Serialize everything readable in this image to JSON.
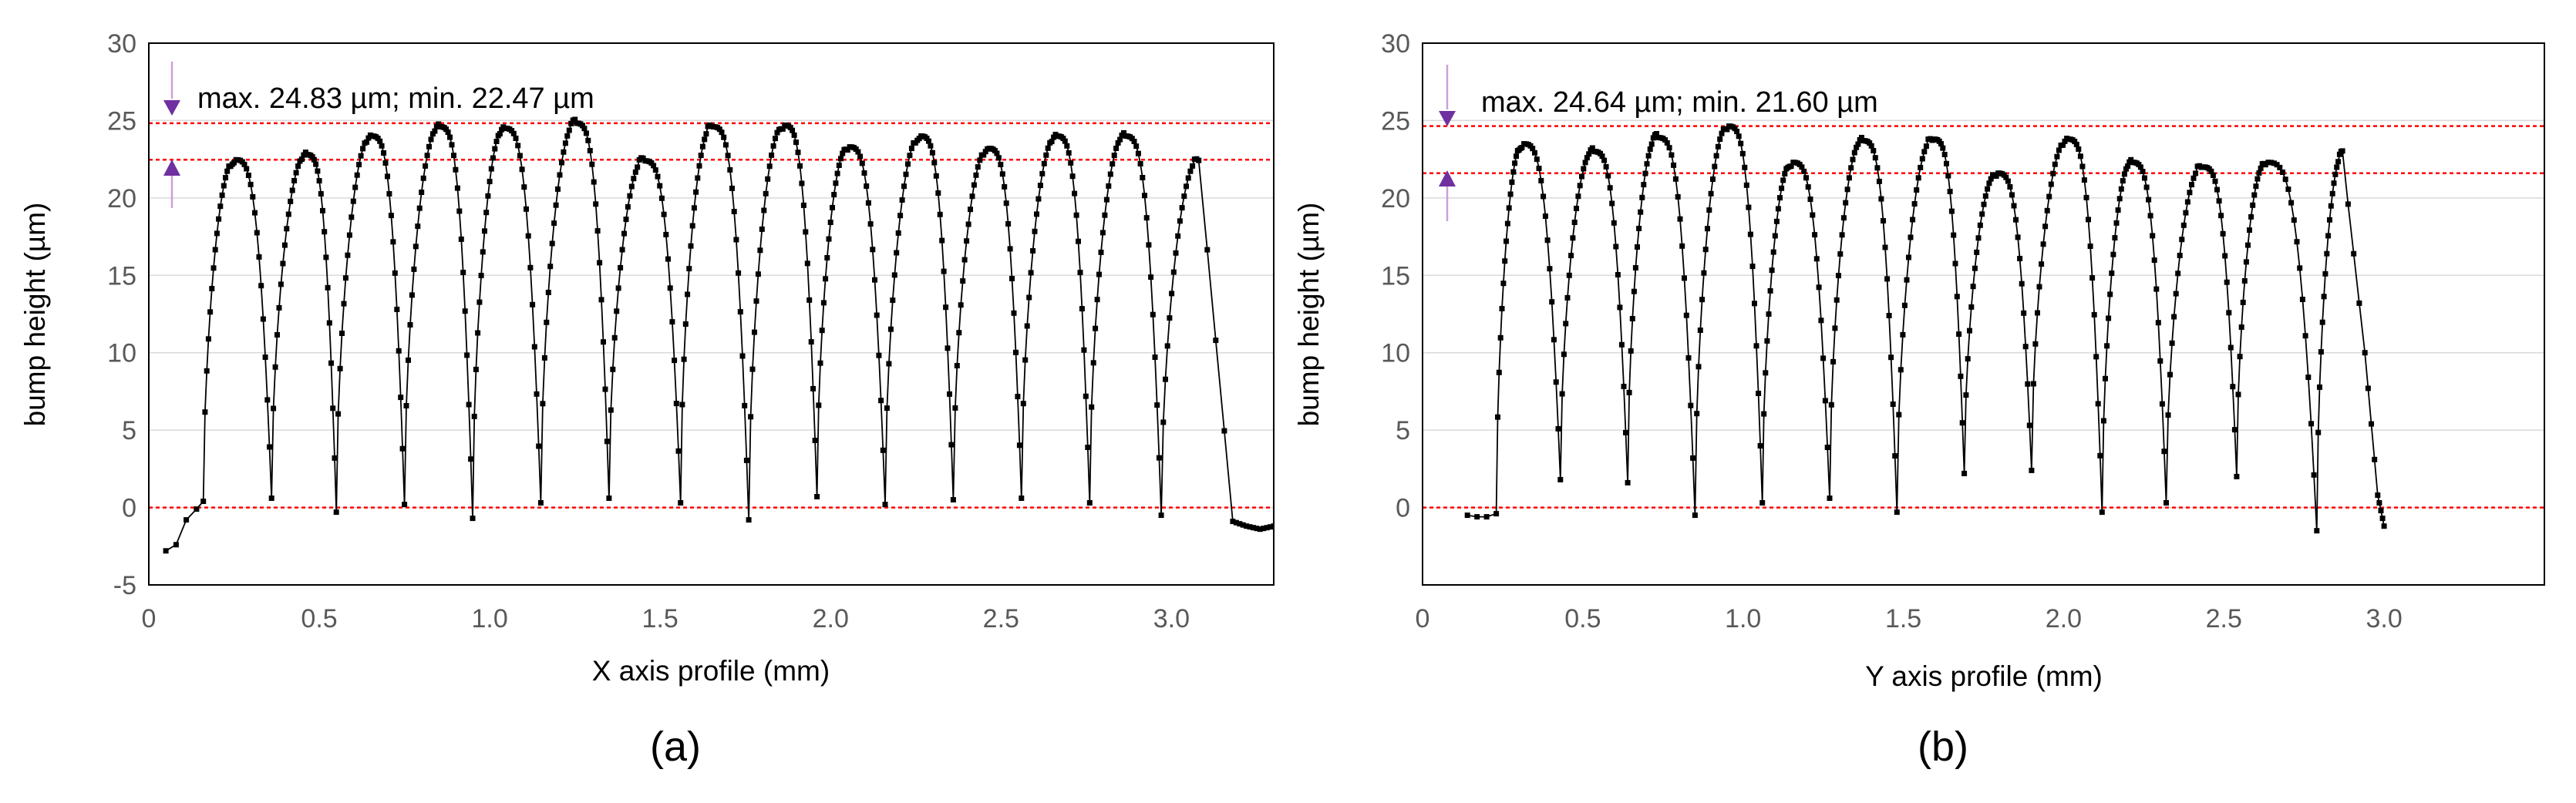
{
  "chart_data": [
    {
      "panel_label": "(a)",
      "type": "scatter",
      "xlabel": "X axis profile (mm)",
      "ylabel": "bump height (µm)",
      "xlim": [
        0,
        3.3
      ],
      "ylim": [
        -5,
        30
      ],
      "xticks": [
        0,
        0.5,
        1.0,
        1.5,
        2.0,
        2.5,
        3.0
      ],
      "xtick_labels": [
        "0",
        "0.5",
        "1.0",
        "1.5",
        "2.0",
        "2.5",
        "3.0"
      ],
      "yticks": [
        -5,
        0,
        5,
        10,
        15,
        20,
        25,
        30
      ],
      "grid": "horizontal",
      "reference_lines": [
        24.83,
        22.47,
        0
      ],
      "annotation": "max. 24.83 µm;  min. 22.47 µm",
      "profile": {
        "start": {
          "x": 0.05,
          "y": -2.8
        },
        "baseline": [
          [
            0.05,
            -2.8
          ],
          [
            0.08,
            -2.4
          ],
          [
            0.11,
            -0.8
          ],
          [
            0.14,
            -0.1
          ],
          [
            0.16,
            0.4
          ]
        ],
        "peaks": [
          {
            "x": 0.25,
            "y": 22.47
          },
          {
            "x": 0.46,
            "y": 22.8
          },
          {
            "x": 0.65,
            "y": 24.0
          },
          {
            "x": 0.85,
            "y": 24.6
          },
          {
            "x": 1.04,
            "y": 24.5
          },
          {
            "x": 1.25,
            "y": 24.83
          },
          {
            "x": 1.45,
            "y": 22.4
          },
          {
            "x": 1.65,
            "y": 24.6
          },
          {
            "x": 1.86,
            "y": 24.7
          },
          {
            "x": 2.05,
            "y": 23.3
          },
          {
            "x": 2.26,
            "y": 24.0
          },
          {
            "x": 2.46,
            "y": 23.2
          },
          {
            "x": 2.66,
            "y": 24.0
          },
          {
            "x": 2.86,
            "y": 24.0
          },
          {
            "x": 3.08,
            "y": 22.5
          }
        ],
        "valleys": [
          {
            "x": 0.36,
            "y": 0.6
          },
          {
            "x": 0.55,
            "y": -0.3
          },
          {
            "x": 0.75,
            "y": 0.2
          },
          {
            "x": 0.95,
            "y": -0.7
          },
          {
            "x": 1.15,
            "y": 0.3
          },
          {
            "x": 1.35,
            "y": 0.6
          },
          {
            "x": 1.56,
            "y": 0.3
          },
          {
            "x": 1.76,
            "y": -0.8
          },
          {
            "x": 1.96,
            "y": 0.7
          },
          {
            "x": 2.16,
            "y": 0.2
          },
          {
            "x": 2.36,
            "y": 0.5
          },
          {
            "x": 2.56,
            "y": 0.6
          },
          {
            "x": 2.76,
            "y": 0.3
          },
          {
            "x": 2.97,
            "y": -0.5
          }
        ],
        "tail": [
          [
            3.18,
            -0.9
          ],
          [
            3.22,
            -1.2
          ],
          [
            3.26,
            -1.4
          ],
          [
            3.3,
            -1.2
          ]
        ]
      }
    },
    {
      "panel_label": "(b)",
      "type": "scatter",
      "xlabel": "Y axis profile (mm)",
      "ylabel": "bump height (µm)",
      "xlim": [
        0,
        3.5
      ],
      "ylim": [
        -5,
        30
      ],
      "xticks": [
        0,
        0.5,
        1.0,
        1.5,
        2.0,
        2.5,
        3.0
      ],
      "xtick_labels": [
        "0",
        "0.5",
        "1.0",
        "1.5",
        "2.0",
        "2.5",
        "3.0"
      ],
      "yticks": [
        0,
        5,
        10,
        15,
        20,
        25,
        30
      ],
      "grid": "horizontal",
      "reference_lines": [
        24.64,
        21.6,
        0
      ],
      "annotation": "max. 24.64 µm;  min. 21.60 µm",
      "profile": {
        "start": {
          "x": 0.14,
          "y": -0.5
        },
        "baseline": [
          [
            0.14,
            -0.5
          ],
          [
            0.17,
            -0.6
          ],
          [
            0.2,
            -0.6
          ],
          [
            0.23,
            -0.4
          ]
        ],
        "peaks": [
          {
            "x": 0.31,
            "y": 23.5
          },
          {
            "x": 0.53,
            "y": 23.0
          },
          {
            "x": 0.73,
            "y": 23.9
          },
          {
            "x": 0.95,
            "y": 24.64
          },
          {
            "x": 1.15,
            "y": 22.3
          },
          {
            "x": 1.37,
            "y": 23.7
          },
          {
            "x": 1.59,
            "y": 23.8
          },
          {
            "x": 1.79,
            "y": 21.6
          },
          {
            "x": 2.01,
            "y": 23.8
          },
          {
            "x": 2.21,
            "y": 22.3
          },
          {
            "x": 2.43,
            "y": 22.0
          },
          {
            "x": 2.63,
            "y": 22.3
          },
          {
            "x": 2.87,
            "y": 22.8
          }
        ],
        "valleys": [
          {
            "x": 0.43,
            "y": 1.8
          },
          {
            "x": 0.64,
            "y": 1.6
          },
          {
            "x": 0.85,
            "y": -0.5
          },
          {
            "x": 1.06,
            "y": 0.3
          },
          {
            "x": 1.27,
            "y": 0.6
          },
          {
            "x": 1.48,
            "y": -0.3
          },
          {
            "x": 1.69,
            "y": 2.2
          },
          {
            "x": 1.9,
            "y": 2.4
          },
          {
            "x": 2.12,
            "y": -0.3
          },
          {
            "x": 2.32,
            "y": 0.3
          },
          {
            "x": 2.54,
            "y": 2.0
          },
          {
            "x": 2.79,
            "y": -1.5
          }
        ],
        "tail": [
          [
            2.94,
            10.0
          ],
          [
            2.98,
            0.8
          ],
          [
            3.0,
            -1.2
          ]
        ]
      }
    }
  ]
}
